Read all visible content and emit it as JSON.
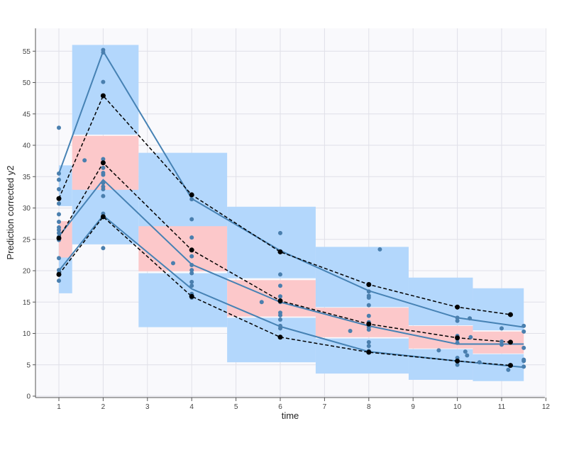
{
  "chart_data": {
    "type": "vpc",
    "xlabel": "time",
    "ylabel": "Prediction corrected y2",
    "xlim": [
      -0.5,
      12
    ],
    "ylim": [
      0,
      58
    ],
    "x_ticks": [
      1,
      2,
      3,
      4,
      5,
      6,
      7,
      8,
      9,
      10,
      11,
      12
    ],
    "y_ticks": [
      0,
      5,
      10,
      15,
      20,
      25,
      30,
      35,
      40,
      45,
      50,
      55
    ],
    "grid": true,
    "colors": {
      "background": "#f9f9fc",
      "grid": "#e0e0e8",
      "outer_band": "#b3d7fc",
      "median_band": "#fcc8ca",
      "observed_line": "#4682b4",
      "observed_points": "#4a7fae",
      "percentile_line": "#000000"
    },
    "bins": [
      {
        "x0": 1.0,
        "x1": 1.3,
        "upper_pi": [
          30.3,
          36.8
        ],
        "median_pi": [
          22.1,
          27.9
        ],
        "lower_pi": [
          16.4,
          27.0
        ]
      },
      {
        "x0": 1.3,
        "x1": 2.8,
        "upper_pi": [
          41.7,
          56.0
        ],
        "median_pi": [
          32.9,
          41.5
        ],
        "lower_pi": [
          24.2,
          33.0
        ]
      },
      {
        "x0": 2.8,
        "x1": 4.8,
        "upper_pi": [
          26.5,
          38.8
        ],
        "median_pi": [
          19.9,
          27.1
        ],
        "lower_pi": [
          11.0,
          19.6
        ]
      },
      {
        "x0": 4.8,
        "x1": 6.8,
        "upper_pi": [
          18.8,
          30.2
        ],
        "median_pi": [
          12.7,
          18.5
        ],
        "lower_pi": [
          5.4,
          12.5
        ]
      },
      {
        "x0": 6.8,
        "x1": 8.9,
        "upper_pi": [
          14.2,
          23.8
        ],
        "median_pi": [
          9.4,
          14.1
        ],
        "lower_pi": [
          3.6,
          9.2
        ]
      },
      {
        "x0": 8.9,
        "x1": 10.35,
        "upper_pi": [
          11.3,
          18.9
        ],
        "median_pi": [
          7.6,
          11.2
        ],
        "lower_pi": [
          2.6,
          7.5
        ]
      },
      {
        "x0": 10.35,
        "x1": 11.5,
        "upper_pi": [
          10.5,
          17.2
        ],
        "median_pi": [
          6.8,
          10.3
        ],
        "lower_pi": [
          2.4,
          6.7
        ]
      }
    ],
    "observed_percentiles": {
      "x": [
        1.0,
        2.0,
        4.0,
        6.0,
        8.0,
        10.0,
        11.5
      ],
      "upper": [
        35.5,
        55.0,
        31.5,
        23.2,
        16.8,
        12.5,
        11.0
      ],
      "median": [
        25.5,
        34.5,
        21.0,
        15.0,
        11.2,
        8.3,
        8.3
      ],
      "lower": [
        20.0,
        28.8,
        17.1,
        11.1,
        7.1,
        5.6,
        4.6
      ]
    },
    "simulated_percentiles": {
      "x": [
        1.0,
        2.0,
        4.0,
        6.0,
        8.0,
        10.0,
        11.2
      ],
      "upper": [
        31.5,
        47.9,
        32.1,
        23.0,
        17.8,
        14.2,
        13.0
      ],
      "median": [
        25.2,
        37.2,
        23.3,
        15.2,
        11.5,
        9.3,
        8.6
      ],
      "lower": [
        19.4,
        28.6,
        15.9,
        9.4,
        7.0,
        5.6,
        4.9
      ]
    },
    "observations": [
      {
        "x": 1.0,
        "y": 42.8
      },
      {
        "x": 1.0,
        "y": 35.5
      },
      {
        "x": 1.0,
        "y": 34.5
      },
      {
        "x": 1.0,
        "y": 33.0
      },
      {
        "x": 1.0,
        "y": 30.7
      },
      {
        "x": 1.0,
        "y": 29.0
      },
      {
        "x": 1.0,
        "y": 27.8
      },
      {
        "x": 1.0,
        "y": 26.9
      },
      {
        "x": 1.0,
        "y": 26.5
      },
      {
        "x": 1.0,
        "y": 26.0
      },
      {
        "x": 1.0,
        "y": 25.4
      },
      {
        "x": 1.0,
        "y": 24.9
      },
      {
        "x": 1.0,
        "y": 22.0
      },
      {
        "x": 1.0,
        "y": 20.1
      },
      {
        "x": 1.0,
        "y": 19.6
      },
      {
        "x": 1.0,
        "y": 18.4
      },
      {
        "x": 1.58,
        "y": 37.6
      },
      {
        "x": 2.0,
        "y": 55.2
      },
      {
        "x": 2.0,
        "y": 54.8
      },
      {
        "x": 2.0,
        "y": 50.1
      },
      {
        "x": 2.0,
        "y": 37.8
      },
      {
        "x": 2.0,
        "y": 36.4
      },
      {
        "x": 2.0,
        "y": 35.6
      },
      {
        "x": 2.0,
        "y": 35.3
      },
      {
        "x": 2.0,
        "y": 34.0
      },
      {
        "x": 2.0,
        "y": 33.4
      },
      {
        "x": 2.0,
        "y": 33.0
      },
      {
        "x": 2.0,
        "y": 31.9
      },
      {
        "x": 2.0,
        "y": 29.1
      },
      {
        "x": 2.0,
        "y": 28.7
      },
      {
        "x": 2.0,
        "y": 23.6
      },
      {
        "x": 3.58,
        "y": 21.2
      },
      {
        "x": 4.0,
        "y": 32.1
      },
      {
        "x": 4.0,
        "y": 31.4
      },
      {
        "x": 4.0,
        "y": 28.2
      },
      {
        "x": 4.0,
        "y": 25.3
      },
      {
        "x": 4.0,
        "y": 22.3
      },
      {
        "x": 4.0,
        "y": 20.9
      },
      {
        "x": 4.0,
        "y": 20.1
      },
      {
        "x": 4.0,
        "y": 19.6
      },
      {
        "x": 4.0,
        "y": 18.2
      },
      {
        "x": 4.0,
        "y": 17.6
      },
      {
        "x": 4.0,
        "y": 16.3
      },
      {
        "x": 4.0,
        "y": 15.7
      },
      {
        "x": 5.58,
        "y": 15.0
      },
      {
        "x": 6.0,
        "y": 26.0
      },
      {
        "x": 6.0,
        "y": 23.1
      },
      {
        "x": 6.0,
        "y": 19.4
      },
      {
        "x": 6.0,
        "y": 17.6
      },
      {
        "x": 6.0,
        "y": 15.9
      },
      {
        "x": 6.0,
        "y": 15.0
      },
      {
        "x": 6.0,
        "y": 13.3
      },
      {
        "x": 6.0,
        "y": 12.9
      },
      {
        "x": 6.0,
        "y": 12.2
      },
      {
        "x": 6.0,
        "y": 11.2
      },
      {
        "x": 6.0,
        "y": 10.8
      },
      {
        "x": 7.58,
        "y": 10.4
      },
      {
        "x": 8.0,
        "y": 16.7
      },
      {
        "x": 8.0,
        "y": 16.0
      },
      {
        "x": 8.0,
        "y": 15.7
      },
      {
        "x": 8.0,
        "y": 14.5
      },
      {
        "x": 8.0,
        "y": 12.8
      },
      {
        "x": 8.0,
        "y": 11.8
      },
      {
        "x": 8.0,
        "y": 11.5
      },
      {
        "x": 8.0,
        "y": 11.0
      },
      {
        "x": 8.0,
        "y": 10.6
      },
      {
        "x": 8.0,
        "y": 8.6
      },
      {
        "x": 8.0,
        "y": 8.0
      },
      {
        "x": 8.0,
        "y": 7.2
      },
      {
        "x": 8.25,
        "y": 23.4
      },
      {
        "x": 9.58,
        "y": 7.3
      },
      {
        "x": 10.0,
        "y": 12.5
      },
      {
        "x": 10.0,
        "y": 12.0
      },
      {
        "x": 10.0,
        "y": 9.6
      },
      {
        "x": 10.0,
        "y": 9.1
      },
      {
        "x": 10.0,
        "y": 8.5
      },
      {
        "x": 10.0,
        "y": 6.1
      },
      {
        "x": 10.0,
        "y": 5.6
      },
      {
        "x": 10.0,
        "y": 5.0
      },
      {
        "x": 10.18,
        "y": 7.1
      },
      {
        "x": 10.22,
        "y": 6.5
      },
      {
        "x": 10.28,
        "y": 12.4
      },
      {
        "x": 10.3,
        "y": 9.4
      },
      {
        "x": 10.5,
        "y": 5.4
      },
      {
        "x": 11.0,
        "y": 10.8
      },
      {
        "x": 11.0,
        "y": 8.7
      },
      {
        "x": 11.0,
        "y": 8.2
      },
      {
        "x": 11.15,
        "y": 4.2
      },
      {
        "x": 11.5,
        "y": 11.2
      },
      {
        "x": 11.5,
        "y": 10.3
      },
      {
        "x": 11.5,
        "y": 7.7
      },
      {
        "x": 11.5,
        "y": 5.8
      },
      {
        "x": 11.5,
        "y": 5.6
      },
      {
        "x": 11.5,
        "y": 4.7
      }
    ]
  }
}
